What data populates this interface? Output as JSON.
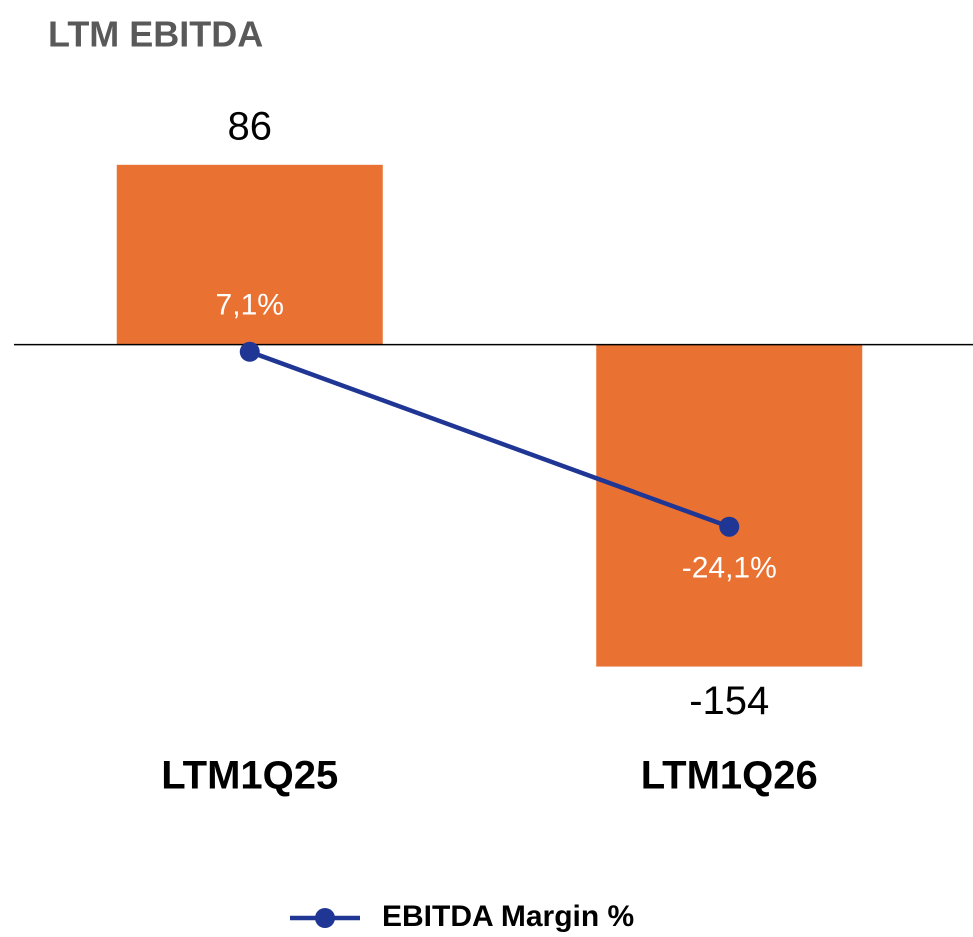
{
  "chart_data": {
    "type": "bar",
    "title": "LTM EBITDA",
    "categories": [
      "LTM1Q25",
      "LTM1Q26"
    ],
    "series": [
      {
        "type": "bar",
        "color": "#e97132",
        "values": [
          86,
          -154
        ]
      },
      {
        "type": "line",
        "name": "EBITDA Margin %",
        "color": "#1f3694",
        "axis": "y2",
        "values": [
          7.1,
          -24.1
        ],
        "value_labels": [
          "7,1%",
          "-24,1%"
        ]
      }
    ],
    "ylim": [
      -170,
      117
    ],
    "y2lim": [
      -55,
      52
    ],
    "legend": "bottom"
  }
}
